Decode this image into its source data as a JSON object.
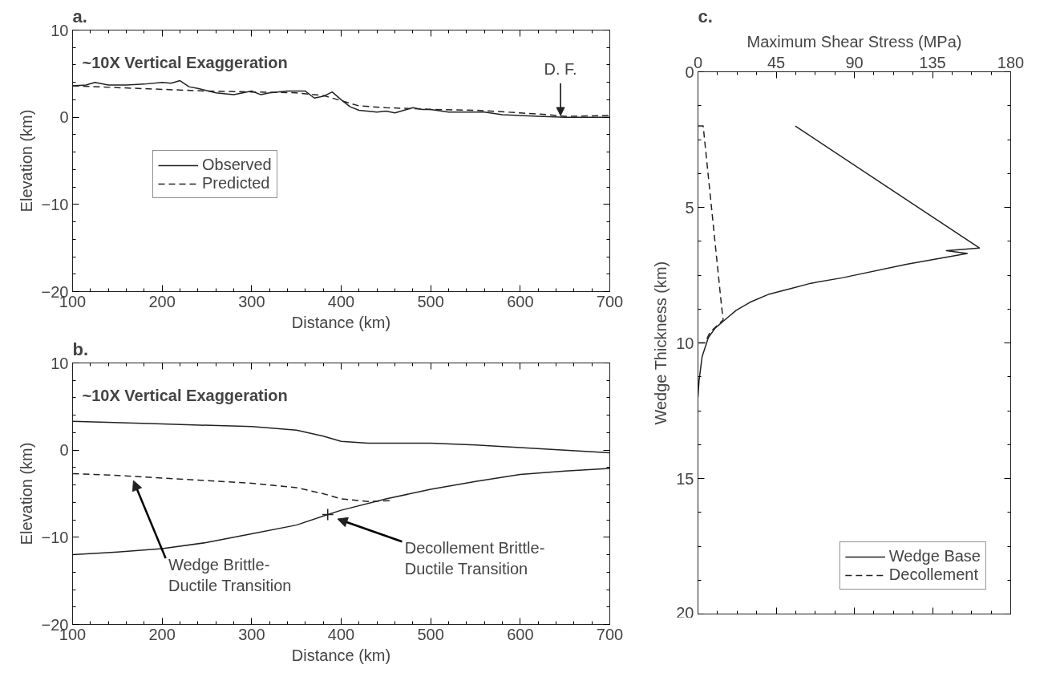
{
  "chart_data": [
    {
      "type": "line",
      "title": "a.",
      "xlabel": "Distance (km)",
      "ylabel": "Elevation (km)",
      "xlim": [
        100,
        700
      ],
      "ylim": [
        -20,
        10
      ],
      "xticks": [
        100,
        200,
        300,
        400,
        500,
        600,
        700
      ],
      "yticks": [
        -20,
        -10,
        0,
        10
      ],
      "grid": false,
      "legend": "left",
      "marker": "none",
      "annotations": [
        "~10X Vertical Exaggeration",
        {
          "text": "D. F.",
          "x": 645,
          "y": 0
        }
      ],
      "series": [
        {
          "name": "Observed",
          "color": "#222222",
          "line_style": "solid",
          "x": [
            100,
            115,
            125,
            140,
            160,
            180,
            200,
            210,
            220,
            230,
            240,
            260,
            280,
            300,
            310,
            320,
            340,
            360,
            370,
            380,
            390,
            400,
            410,
            420,
            440,
            450,
            460,
            470,
            480,
            490,
            500,
            520,
            540,
            560,
            580,
            600,
            620,
            650,
            700
          ],
          "values": [
            3.6,
            3.7,
            4.0,
            3.7,
            3.7,
            3.8,
            4.0,
            3.9,
            4.2,
            3.5,
            3.3,
            2.8,
            2.6,
            3.0,
            2.6,
            2.8,
            3.0,
            3.0,
            2.2,
            2.4,
            2.9,
            2.0,
            1.2,
            0.8,
            0.6,
            0.7,
            0.5,
            0.8,
            1.1,
            0.9,
            0.9,
            0.6,
            0.6,
            0.6,
            0.3,
            0.2,
            0.1,
            0,
            0
          ]
        },
        {
          "name": "Predicted",
          "color": "#222222",
          "line_style": "dashed",
          "x": [
            100,
            150,
            200,
            250,
            300,
            350,
            380,
            400,
            420,
            450,
            500,
            550,
            600,
            630,
            650,
            700
          ],
          "values": [
            3.6,
            3.4,
            3.2,
            3.0,
            2.9,
            2.8,
            2.5,
            1.9,
            1.3,
            1.1,
            0.9,
            0.8,
            0.5,
            0.3,
            0.1,
            0.2
          ]
        }
      ]
    },
    {
      "type": "line",
      "title": "b.",
      "xlabel": "Distance (km)",
      "ylabel": "Elevation (km)",
      "xlim": [
        100,
        700
      ],
      "ylim": [
        -20,
        10
      ],
      "xticks": [
        100,
        200,
        300,
        400,
        500,
        600,
        700
      ],
      "yticks": [
        -20,
        -10,
        0,
        10
      ],
      "grid": false,
      "legend": false,
      "marker": "none",
      "annotations": [
        "~10X Vertical Exaggeration",
        {
          "text": "Wedge Brittle-\nDuctile Transition",
          "x": 165,
          "y": -3.2
        },
        {
          "text": "Decollement Brittle-\nDuctile Transition",
          "x": 393,
          "y": -7.6
        }
      ],
      "series": [
        {
          "color": "#222222",
          "line_style": "solid",
          "x": [
            100,
            200,
            300,
            350,
            380,
            400,
            430,
            500,
            550,
            600,
            650,
            700
          ],
          "values": [
            3.3,
            3.0,
            2.7,
            2.3,
            1.6,
            1.0,
            0.8,
            0.8,
            0.6,
            0.3,
            0,
            -0.3
          ]
        },
        {
          "color": "#222222",
          "line_style": "solid",
          "x": [
            100,
            150,
            200,
            250,
            300,
            350,
            385,
            400,
            450,
            500,
            550,
            600,
            650,
            700
          ],
          "values": [
            -12.0,
            -11.7,
            -11.3,
            -10.6,
            -9.6,
            -8.6,
            -7.4,
            -6.9,
            -5.6,
            -4.5,
            -3.6,
            -2.8,
            -2.4,
            -2.1
          ]
        },
        {
          "color": "#222222",
          "line_style": "dashed",
          "x": [
            100,
            150,
            200,
            250,
            300,
            350,
            380,
            400,
            430,
            455
          ],
          "values": [
            -2.7,
            -2.9,
            -3.2,
            -3.5,
            -3.8,
            -4.3,
            -5.0,
            -5.6,
            -5.9,
            -5.8
          ]
        },
        {
          "type": "scatter",
          "marker": "cross",
          "color": "#222222",
          "x": [
            385
          ],
          "values": [
            -7.4
          ]
        }
      ]
    },
    {
      "type": "line",
      "title": "c.",
      "xlabel": "Maximum Shear Stress (MPa)",
      "ylabel": "Wedge Thickness (km)",
      "xlim": [
        0,
        180
      ],
      "ylim": [
        20,
        0
      ],
      "xticks": [
        0,
        45,
        90,
        135,
        180
      ],
      "yticks": [
        0,
        5,
        10,
        15,
        20
      ],
      "grid": false,
      "legend": "bottom right",
      "marker": "none",
      "series": [
        {
          "name": "Wedge Base",
          "color": "#222222",
          "line_style": "solid",
          "x": [
            56,
            162,
            143,
            155,
            120,
            83,
            65,
            53,
            41,
            30,
            22,
            15.5,
            10,
            6,
            2.4,
            0.6,
            0
          ],
          "values": [
            2.0,
            6.5,
            6.6,
            6.7,
            7.1,
            7.6,
            7.8,
            8.0,
            8.2,
            8.5,
            8.8,
            9.15,
            9.45,
            9.8,
            10.5,
            11.4,
            12.0
          ]
        },
        {
          "name": "Decollement",
          "color": "#222222",
          "line_style": "dashed",
          "x": [
            0,
            3,
            13.5,
            14.5,
            7,
            4,
            0
          ],
          "values": [
            2.0,
            2.0,
            8.6,
            9.15,
            9.6,
            10.0,
            10.0
          ]
        }
      ]
    }
  ]
}
